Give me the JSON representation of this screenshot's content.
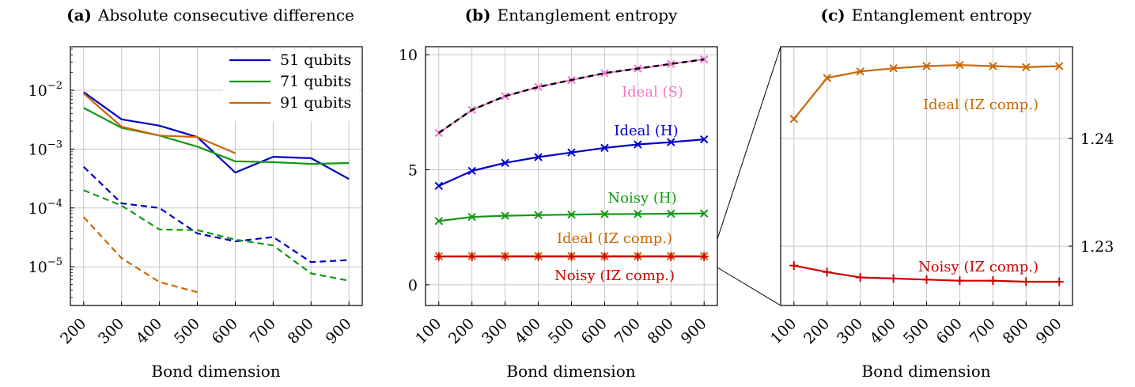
{
  "chart_data": [
    {
      "type": "line",
      "title_prefix": "(a)",
      "title": "Absolute consecutive difference",
      "xlabel": "Bond dimension",
      "ylabel": "",
      "yscale": "log",
      "ylim": [
        2.2e-06,
        0.055
      ],
      "xlim": [
        165,
        935
      ],
      "xticks": [
        "200",
        "300",
        "400",
        "500",
        "600",
        "700",
        "800",
        "900"
      ],
      "yticks": [
        {
          "value": 1e-05,
          "label": "10",
          "exp": "−5"
        },
        {
          "value": 0.0001,
          "label": "10",
          "exp": "−4"
        },
        {
          "value": 0.001,
          "label": "10",
          "exp": "−3"
        },
        {
          "value": 0.01,
          "label": "10",
          "exp": "−2"
        }
      ],
      "grid": true,
      "legend_position": "top-right",
      "series": [
        {
          "name": "51 qubits",
          "color": "#0000cc",
          "dash": false,
          "x": [
            200,
            300,
            400,
            500,
            600,
            700,
            800,
            900
          ],
          "values": [
            0.0093,
            0.0032,
            0.0025,
            0.0016,
            0.0004,
            0.00074,
            0.0007,
            0.00031
          ]
        },
        {
          "name": "71 qubits",
          "color": "#119911",
          "dash": false,
          "x": [
            200,
            300,
            400,
            500,
            600,
            700,
            800,
            900
          ],
          "values": [
            0.005,
            0.0023,
            0.0017,
            0.0011,
            0.00062,
            0.0006,
            0.00056,
            0.00058
          ]
        },
        {
          "name": "91 qubits",
          "color": "#cc6600",
          "dash": false,
          "x": [
            200,
            300,
            400,
            500,
            600
          ],
          "values": [
            0.0088,
            0.0024,
            0.0017,
            0.0016,
            0.00085
          ]
        },
        {
          "name": "",
          "color": "#0000cc",
          "dash": true,
          "x": [
            200,
            300,
            400,
            500,
            600,
            700,
            800,
            900
          ],
          "values": [
            0.0005,
            0.00012,
            0.0001,
            3.7e-05,
            2.7e-05,
            3.2e-05,
            1.2e-05,
            1.3e-05
          ]
        },
        {
          "name": "",
          "color": "#119911",
          "dash": true,
          "x": [
            200,
            300,
            400,
            500,
            600,
            700,
            800,
            900
          ],
          "values": [
            0.0002,
            0.00011,
            4.3e-05,
            4.2e-05,
            2.9e-05,
            2.3e-05,
            7.7e-06,
            5.8e-06
          ]
        },
        {
          "name": "",
          "color": "#cc6600",
          "dash": true,
          "x": [
            200,
            300,
            400,
            500
          ],
          "values": [
            7e-05,
            1.4e-05,
            5.5e-06,
            3.7e-06
          ]
        }
      ]
    },
    {
      "type": "line",
      "title_prefix": "(b)",
      "title": "Entanglement entropy",
      "xlabel": "Bond dimension",
      "ylabel": "",
      "ylim": [
        -0.9,
        10.35
      ],
      "xlim": [
        60,
        940
      ],
      "xticks": [
        "100",
        "200",
        "300",
        "400",
        "500",
        "600",
        "700",
        "800",
        "900"
      ],
      "yticks": [
        {
          "value": 0,
          "label": "0"
        },
        {
          "value": 5,
          "label": "5"
        },
        {
          "value": 10,
          "label": "10"
        }
      ],
      "grid": true,
      "series": [
        {
          "name": "Ideal (S)",
          "color": "#ee77cc",
          "marker": "x",
          "dash": false,
          "x": [
            100,
            200,
            300,
            400,
            500,
            600,
            700,
            800,
            900
          ],
          "values": [
            6.6,
            7.6,
            8.2,
            8.6,
            8.9,
            9.2,
            9.4,
            9.6,
            9.8
          ],
          "overlay_dashed_black": true
        },
        {
          "name": "Ideal (H)",
          "color": "#0000cc",
          "marker": "x",
          "dash": false,
          "x": [
            100,
            200,
            300,
            400,
            500,
            600,
            700,
            800,
            900
          ],
          "values": [
            4.3,
            4.95,
            5.3,
            5.55,
            5.75,
            5.95,
            6.1,
            6.2,
            6.32
          ]
        },
        {
          "name": "Noisy (H)",
          "color": "#119911",
          "marker": "x",
          "dash": false,
          "x": [
            100,
            200,
            300,
            400,
            500,
            600,
            700,
            800,
            900
          ],
          "values": [
            2.77,
            2.95,
            3.0,
            3.03,
            3.05,
            3.07,
            3.08,
            3.09,
            3.1
          ]
        },
        {
          "name": "Ideal (IZ comp.)",
          "color": "#cc6600",
          "marker": "x",
          "dash": false,
          "x": [
            100,
            200,
            300,
            400,
            500,
            600,
            700,
            800,
            900
          ],
          "values": [
            1.24,
            1.245,
            1.246,
            1.246,
            1.246,
            1.246,
            1.246,
            1.246,
            1.246
          ]
        },
        {
          "name": "Noisy (IZ comp.)",
          "color": "#cc0000",
          "marker": "+",
          "dash": false,
          "x": [
            100,
            200,
            300,
            400,
            500,
            600,
            700,
            800,
            900
          ],
          "values": [
            1.228,
            1.227,
            1.227,
            1.227,
            1.227,
            1.227,
            1.227,
            1.227,
            1.227
          ]
        }
      ]
    },
    {
      "type": "line",
      "title_prefix": "(c)",
      "title": "Entanglement entropy",
      "xlabel": "Bond dimension",
      "ylabel": "",
      "ylim": [
        1.2245,
        1.2485
      ],
      "xlim": [
        60,
        940
      ],
      "xticks": [
        "100",
        "200",
        "300",
        "400",
        "500",
        "600",
        "700",
        "800",
        "900"
      ],
      "yticks": [
        {
          "value": 1.23,
          "label": "1.23"
        },
        {
          "value": 1.24,
          "label": "1.24"
        }
      ],
      "yaxis_side": "right",
      "grid": true,
      "series": [
        {
          "name": "Ideal (IZ comp.)",
          "color": "#cc6600",
          "marker": "x",
          "dash": false,
          "x": [
            100,
            200,
            300,
            400,
            500,
            600,
            700,
            800,
            900
          ],
          "values": [
            1.2418,
            1.2456,
            1.2462,
            1.2465,
            1.2467,
            1.2468,
            1.2467,
            1.2466,
            1.2467
          ]
        },
        {
          "name": "Noisy (IZ comp.)",
          "color": "#cc0000",
          "marker": "+",
          "dash": false,
          "x": [
            100,
            200,
            300,
            400,
            500,
            600,
            700,
            800,
            900
          ],
          "values": [
            1.2282,
            1.2276,
            1.2271,
            1.227,
            1.2269,
            1.2268,
            1.2268,
            1.2267,
            1.2267
          ]
        }
      ]
    }
  ]
}
